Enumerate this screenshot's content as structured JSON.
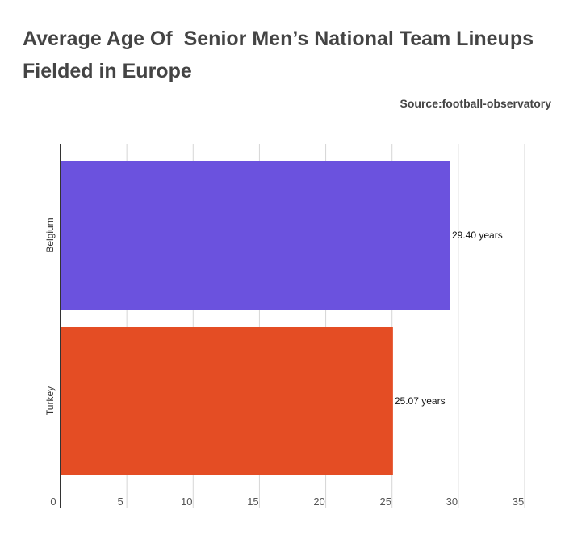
{
  "header": {
    "title": "Average Age Of  Senior Men’s National Team Lineups Fielded in Europe",
    "source": "Source:football-observatory"
  },
  "chart_data": {
    "type": "bar",
    "orientation": "horizontal",
    "title": "Average Age Of  Senior Men’s National Team Lineups Fielded in Europe",
    "xlabel": "",
    "ylabel": "",
    "xlim": [
      0,
      35
    ],
    "ticks": [
      0,
      5,
      10,
      15,
      20,
      25,
      30,
      35
    ],
    "categories": [
      "Belgium",
      "Turkey"
    ],
    "values": [
      29.4,
      25.07
    ],
    "data_labels": [
      "29.40 years",
      "25.07 years"
    ],
    "colors": [
      "#6b52de",
      "#e44d24"
    ],
    "grid": true,
    "legend": "none"
  }
}
